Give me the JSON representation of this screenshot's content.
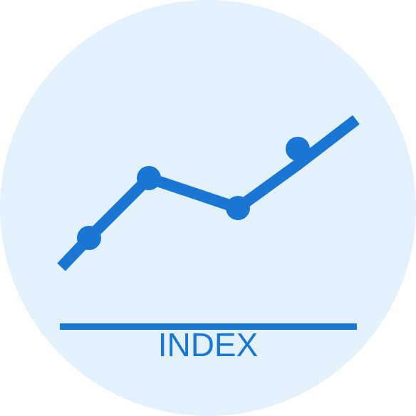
{
  "icon": {
    "name": "line-chart-index-icon",
    "caption": "INDEX",
    "colors": {
      "background_circle": "#e3f1fc",
      "accent": "#1976d2"
    }
  }
}
